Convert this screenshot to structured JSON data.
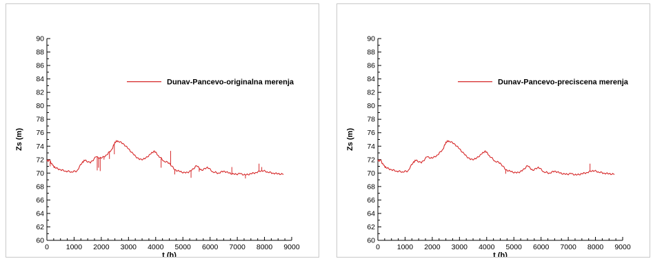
{
  "chart_data": [
    {
      "type": "line",
      "title": "",
      "xlabel": "t (h)",
      "ylabel": "Zs (m)",
      "xlim": [
        0,
        9000
      ],
      "ylim": [
        60,
        90
      ],
      "xticks": [
        "0",
        "1000",
        "2000",
        "3000",
        "4000",
        "5000",
        "6000",
        "7000",
        "8000",
        "9000"
      ],
      "yticks": [
        "60",
        "62",
        "64",
        "66",
        "68",
        "70",
        "72",
        "74",
        "76",
        "78",
        "80",
        "82",
        "84",
        "86",
        "88",
        "90"
      ],
      "grid": false,
      "legend_position": "upper-right",
      "series": [
        {
          "name": "Dunav-Pancevo-originalna merenja",
          "color": "#d62728",
          "x": [
            0,
            100,
            200,
            300,
            500,
            700,
            900,
            1100,
            1300,
            1400,
            1600,
            1800,
            2000,
            2200,
            2400,
            2500,
            2600,
            2800,
            3000,
            3200,
            3400,
            3600,
            3800,
            3950,
            4100,
            4300,
            4500,
            4700,
            4900,
            5100,
            5300,
            5500,
            5700,
            5900,
            6100,
            6300,
            6500,
            6700,
            6900,
            7100,
            7300,
            7500,
            7700,
            7900,
            8100,
            8300,
            8500,
            8700
          ],
          "y": [
            71.8,
            71.9,
            71.2,
            70.8,
            70.5,
            70.3,
            70.2,
            70.3,
            71.6,
            71.9,
            71.5,
            72.4,
            72.2,
            72.7,
            73.6,
            74.6,
            74.8,
            74.4,
            73.6,
            72.7,
            72.0,
            72.1,
            72.8,
            73.3,
            72.6,
            71.8,
            71.5,
            70.5,
            70.2,
            70.0,
            70.3,
            71.1,
            70.4,
            70.9,
            70.2,
            70.0,
            70.3,
            70.0,
            69.8,
            69.9,
            69.7,
            69.9,
            70.1,
            70.4,
            70.2,
            70.0,
            69.9,
            69.8
          ],
          "spikes": [
            {
              "x": 120,
              "y": 71.0
            },
            {
              "x": 1850,
              "y": 70.4
            },
            {
              "x": 1900,
              "y": 70.8
            },
            {
              "x": 1960,
              "y": 70.3
            },
            {
              "x": 2100,
              "y": 72.0
            },
            {
              "x": 2300,
              "y": 72.1
            },
            {
              "x": 2480,
              "y": 72.8
            },
            {
              "x": 4200,
              "y": 70.8
            },
            {
              "x": 4550,
              "y": 73.3
            },
            {
              "x": 4700,
              "y": 69.8
            },
            {
              "x": 5300,
              "y": 69.3
            },
            {
              "x": 5600,
              "y": 70.2
            },
            {
              "x": 6800,
              "y": 70.9
            },
            {
              "x": 7300,
              "y": 69.2
            },
            {
              "x": 7800,
              "y": 71.4
            },
            {
              "x": 7900,
              "y": 70.9
            }
          ]
        }
      ]
    },
    {
      "type": "line",
      "title": "",
      "xlabel": "t (h)",
      "ylabel": "Zs (m)",
      "xlim": [
        0,
        9000
      ],
      "ylim": [
        60,
        90
      ],
      "xticks": [
        "0",
        "1000",
        "2000",
        "3000",
        "4000",
        "5000",
        "6000",
        "7000",
        "8000",
        "9000"
      ],
      "yticks": [
        "60",
        "62",
        "64",
        "66",
        "68",
        "70",
        "72",
        "74",
        "76",
        "78",
        "80",
        "82",
        "84",
        "86",
        "88",
        "90"
      ],
      "grid": false,
      "legend_position": "upper-right",
      "series": [
        {
          "name": "Dunav-Pancevo-preciscena merenja",
          "color": "#d62728",
          "x": [
            0,
            100,
            200,
            300,
            500,
            700,
            900,
            1100,
            1300,
            1400,
            1600,
            1800,
            2000,
            2200,
            2400,
            2500,
            2600,
            2800,
            3000,
            3200,
            3400,
            3600,
            3800,
            3950,
            4100,
            4300,
            4500,
            4700,
            4900,
            5100,
            5300,
            5500,
            5700,
            5900,
            6100,
            6300,
            6500,
            6700,
            6900,
            7100,
            7300,
            7500,
            7700,
            7900,
            8100,
            8300,
            8500,
            8700
          ],
          "y": [
            71.8,
            71.9,
            71.2,
            70.8,
            70.5,
            70.3,
            70.2,
            70.3,
            71.6,
            71.9,
            71.5,
            72.4,
            72.2,
            72.7,
            73.6,
            74.6,
            74.8,
            74.4,
            73.6,
            72.7,
            72.0,
            72.1,
            72.8,
            73.3,
            72.6,
            71.8,
            71.5,
            70.5,
            70.2,
            70.0,
            70.3,
            71.1,
            70.4,
            70.9,
            70.2,
            70.0,
            70.3,
            70.0,
            69.8,
            69.9,
            69.7,
            69.9,
            70.1,
            70.4,
            70.2,
            70.0,
            69.9,
            69.8
          ],
          "spikes": [
            {
              "x": 4700,
              "y": 69.9
            },
            {
              "x": 7800,
              "y": 71.4
            }
          ]
        }
      ]
    }
  ]
}
